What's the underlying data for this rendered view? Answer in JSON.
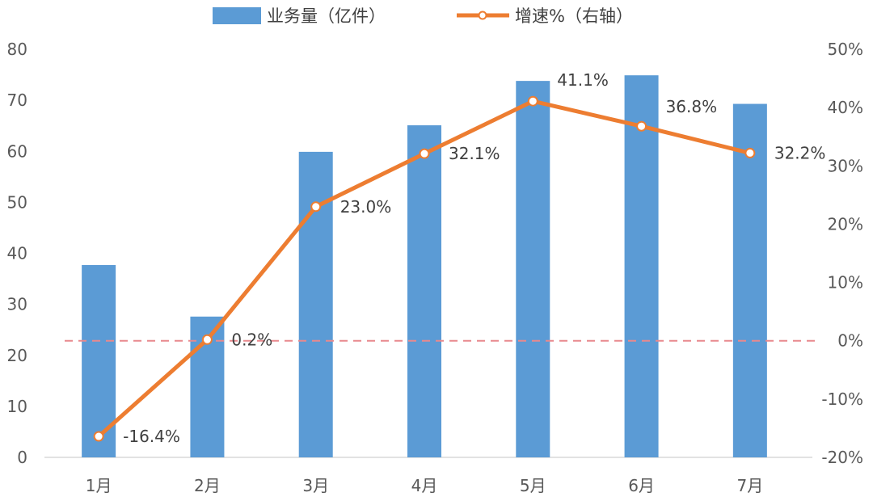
{
  "chart_data": {
    "type": "bar+line",
    "categories": [
      "1月",
      "2月",
      "3月",
      "4月",
      "5月",
      "6月",
      "7月"
    ],
    "series": [
      {
        "name": "业务量（亿件）",
        "type": "bar",
        "axis": "left",
        "color": "#5B9BD5",
        "values": [
          37.7,
          27.6,
          59.9,
          65.1,
          73.8,
          74.9,
          69.3
        ]
      },
      {
        "name": "增速%（右轴）",
        "type": "line",
        "axis": "right",
        "color": "#ED7D31",
        "values": [
          -16.4,
          0.2,
          23.0,
          32.1,
          41.1,
          36.8,
          32.2
        ],
        "labels": [
          "-16.4%",
          "0.2%",
          "23.0%",
          "32.1%",
          "41.1%",
          "36.8%",
          "32.2%"
        ]
      }
    ],
    "y_left": {
      "range": [
        0,
        80
      ],
      "ticks": [
        "0",
        "10",
        "20",
        "30",
        "40",
        "50",
        "60",
        "70",
        "80"
      ]
    },
    "y_right": {
      "range": [
        -20,
        50
      ],
      "ticks": [
        "-20%",
        "-10%",
        "0%",
        "10%",
        "20%",
        "30%",
        "40%",
        "50%"
      ]
    },
    "reference_line": {
      "axis": "right",
      "value": 0,
      "style": "dashed",
      "color": "#E8898E"
    },
    "legend": "top-center",
    "grid": false
  }
}
